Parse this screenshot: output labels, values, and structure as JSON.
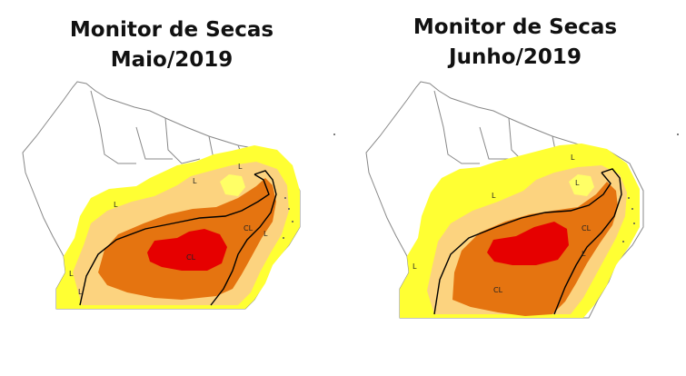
{
  "colors": {
    "background": "#ffffff",
    "d0_abnormally_dry": "#ffff33",
    "d1_moderate": "#fcd37f",
    "d2_severe": "#ffaa00",
    "d3_extreme": "#e60000",
    "d2_orange": "#e57410",
    "border": "#000000",
    "state_line": "#888888"
  },
  "maps": [
    {
      "title_line1": "Monitor de Secas",
      "title_line2": "Maio/2019",
      "labels": [
        "L",
        "L",
        "L",
        "CL",
        "CL",
        "L",
        "L",
        "L"
      ]
    },
    {
      "title_line1": "Monitor de Secas",
      "title_line2": "Junho/2019",
      "labels": [
        "L",
        "L",
        "L",
        "CL",
        "CL",
        "L",
        "L"
      ]
    }
  ]
}
